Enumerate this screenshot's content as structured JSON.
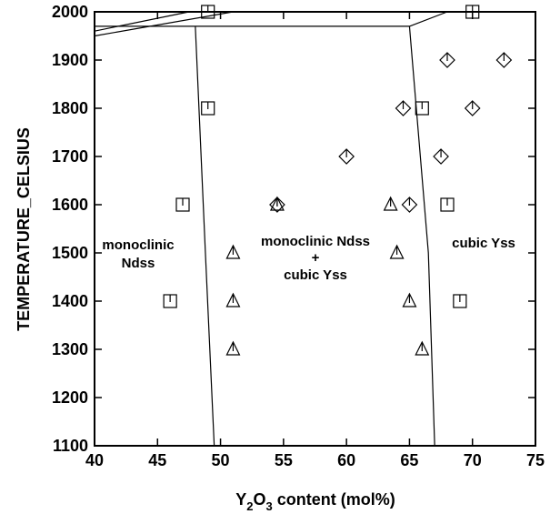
{
  "chart_data": {
    "type": "scatter",
    "xlabel_prefix": "Y",
    "xlabel_sub1": "2",
    "xlabel_mid": "O",
    "xlabel_sub2": "3",
    "xlabel_suffix": " content (mol%)",
    "ylabel": "TEMPERATURE_CELSIUS",
    "xlim": [
      40,
      75
    ],
    "ylim": [
      1100,
      2000
    ],
    "xticks": [
      40,
      45,
      50,
      55,
      60,
      65,
      70,
      75
    ],
    "yticks": [
      1100,
      1200,
      1300,
      1400,
      1500,
      1600,
      1700,
      1800,
      1900,
      2000
    ],
    "region_labels": {
      "left_line1": "monoclinic",
      "left_line2": "Ndss",
      "mid_line1": "monoclinic Ndss",
      "mid_line2": "+",
      "mid_line3": "cubic Yss",
      "right": "cubic Yss"
    },
    "series": [
      {
        "marker": "square",
        "points": [
          [
            49,
            2000
          ],
          [
            49,
            1800
          ],
          [
            47,
            1600
          ],
          [
            46,
            1400
          ],
          [
            66,
            1800
          ],
          [
            68,
            1600
          ],
          [
            69,
            1400
          ],
          [
            70,
            2000
          ]
        ]
      },
      {
        "marker": "triangle",
        "points": [
          [
            54.5,
            1600
          ],
          [
            51,
            1500
          ],
          [
            51,
            1400
          ],
          [
            51,
            1300
          ],
          [
            63.5,
            1600
          ],
          [
            64,
            1500
          ],
          [
            65,
            1400
          ],
          [
            66,
            1300
          ]
        ]
      },
      {
        "marker": "diamond",
        "points": [
          [
            54.5,
            1600
          ],
          [
            60,
            1700
          ],
          [
            64.5,
            1800
          ],
          [
            65,
            1600
          ],
          [
            67.5,
            1700
          ],
          [
            68,
            1900
          ],
          [
            70,
            1800
          ],
          [
            72.5,
            1900
          ]
        ]
      }
    ],
    "boundaries": [
      [
        [
          48,
          1970
        ],
        [
          48.8,
          1500
        ],
        [
          49.5,
          1100
        ]
      ],
      [
        [
          65,
          1970
        ],
        [
          66.5,
          1500
        ],
        [
          67,
          1100
        ]
      ],
      [
        [
          40,
          1970
        ],
        [
          65,
          1970
        ]
      ],
      [
        [
          40,
          1960
        ],
        [
          47.5,
          2000
        ]
      ],
      [
        [
          40,
          1950
        ],
        [
          51,
          2000
        ]
      ],
      [
        [
          65,
          1970
        ],
        [
          68,
          2000
        ]
      ]
    ]
  }
}
